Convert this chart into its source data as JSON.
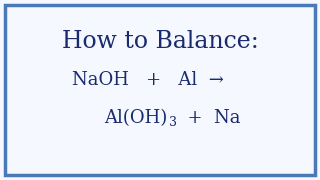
{
  "title": "How to Balance:",
  "line1": "NaOH   +   Al  →",
  "line2_main": "Al(OH)",
  "line2_sub": "3",
  "line2_end": "  +  Na",
  "bg_color": "#f5f8ff",
  "border_color": "#4a7ab5",
  "text_color": "#1a2a6e",
  "title_fontsize": 17,
  "eq_fontsize": 13,
  "sub_fontsize": 9,
  "border_linewidth": 2.5
}
